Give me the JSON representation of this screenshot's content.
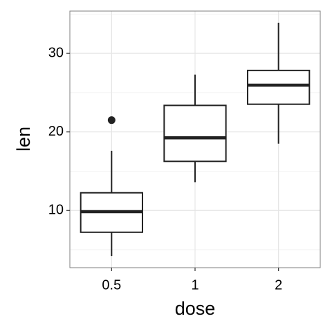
{
  "chart_data": {
    "type": "box",
    "x_label": "dose",
    "y_label": "len",
    "categories": [
      "0.5",
      "1",
      "2"
    ],
    "boxes": [
      {
        "min": 4.2,
        "q1": 7.225,
        "median": 9.85,
        "q3": 12.25,
        "max": 17.6,
        "outliers": [
          21.5
        ]
      },
      {
        "min": 13.6,
        "q1": 16.25,
        "median": 19.25,
        "q3": 23.375,
        "max": 27.3,
        "outliers": []
      },
      {
        "min": 18.5,
        "q1": 23.525,
        "median": 25.95,
        "q3": 27.825,
        "max": 33.9,
        "outliers": []
      }
    ],
    "color": "#222222",
    "ylim": [
      2.715,
      35.385
    ],
    "yticks": [
      10,
      20,
      30
    ],
    "minor_yticks": [
      5,
      15,
      25,
      35
    ],
    "grid": true
  }
}
